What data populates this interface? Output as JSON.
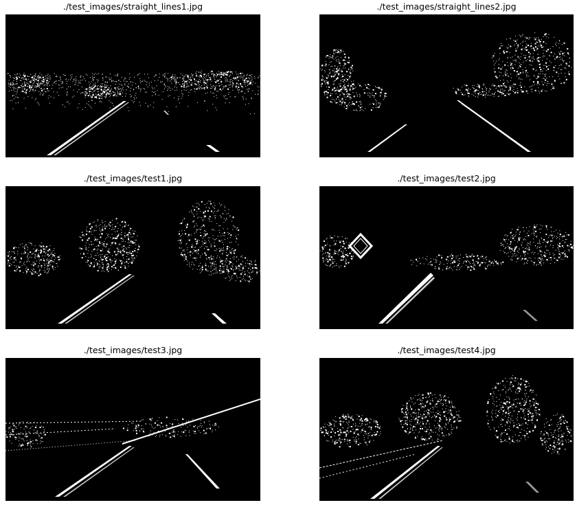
{
  "figure": {
    "background": "#ffffff",
    "image_background": "#000000",
    "foreground": "#ffffff",
    "panels": [
      {
        "title": "./test_images/straight_lines1.jpg"
      },
      {
        "title": "./test_images/straight_lines2.jpg"
      },
      {
        "title": "./test_images/test1.jpg"
      },
      {
        "title": "./test_images/test2.jpg"
      },
      {
        "title": "./test_images/test3.jpg"
      },
      {
        "title": "./test_images/test4.jpg"
      }
    ]
  }
}
